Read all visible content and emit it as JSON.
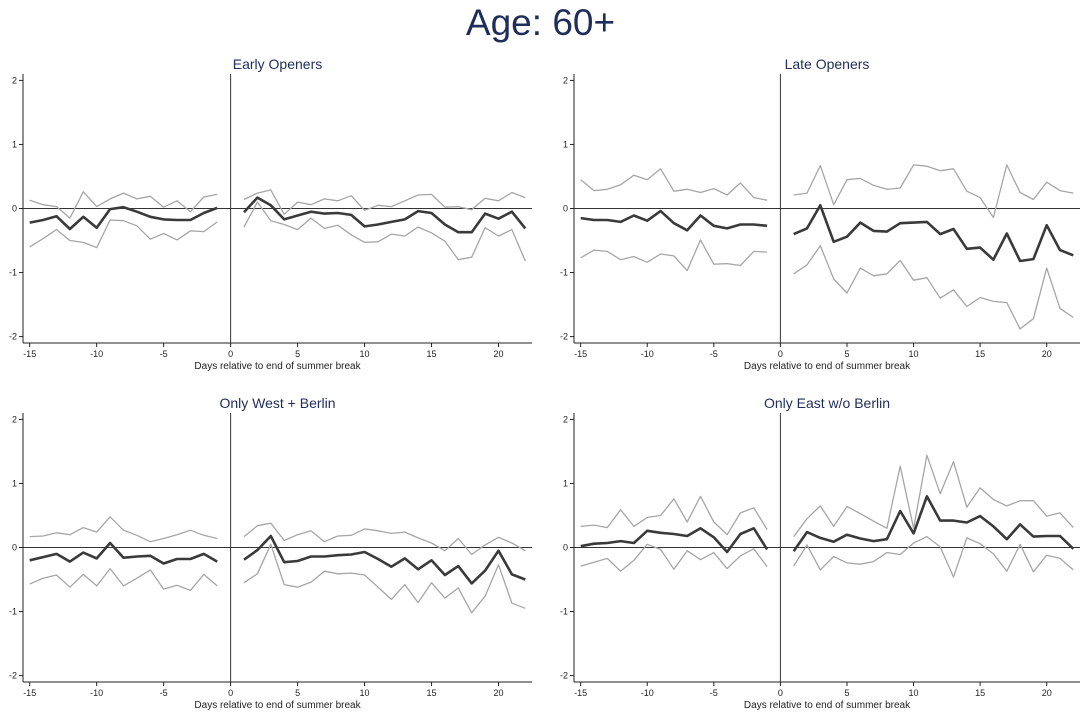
{
  "title": "Age: 60+",
  "chart_data": [
    {
      "type": "line",
      "title": "Early Openers",
      "xlabel": "Days relative to end of summer break",
      "ylabel": "",
      "xlim": [
        -15.5,
        22.5
      ],
      "ylim": [
        -2.1,
        2.1
      ],
      "xticks": [
        -15,
        -10,
        -5,
        0,
        5,
        10,
        15,
        20
      ],
      "yticks": [
        -2,
        -1,
        0,
        1,
        2
      ],
      "series": [
        {
          "role": "estimate",
          "x": [
            -15,
            -14,
            -13,
            -12,
            -11,
            -10,
            -9,
            -8,
            -7,
            -6,
            -5,
            -4,
            -3,
            -2,
            -1,
            1,
            2,
            3,
            4,
            5,
            6,
            7,
            8,
            9,
            10,
            11,
            12,
            13,
            14,
            15,
            16,
            17,
            18,
            19,
            20,
            21,
            22
          ],
          "y": [
            -0.22,
            -0.18,
            -0.12,
            -0.32,
            -0.13,
            -0.3,
            -0.01,
            0.02,
            -0.05,
            -0.13,
            -0.17,
            -0.18,
            -0.18,
            -0.07,
            0.01,
            -0.06,
            0.17,
            0.05,
            -0.17,
            -0.11,
            -0.05,
            -0.08,
            -0.07,
            -0.1,
            -0.28,
            -0.25,
            -0.21,
            -0.17,
            -0.04,
            -0.07,
            -0.25,
            -0.37,
            -0.37,
            -0.08,
            -0.16,
            -0.05,
            -0.31
          ]
        },
        {
          "role": "upper",
          "x": [
            -15,
            -14,
            -13,
            -12,
            -11,
            -10,
            -9,
            -8,
            -7,
            -6,
            -5,
            -4,
            -3,
            -2,
            -1,
            1,
            2,
            3,
            4,
            5,
            6,
            7,
            8,
            9,
            10,
            11,
            12,
            13,
            14,
            15,
            16,
            17,
            18,
            19,
            20,
            21,
            22
          ],
          "y": [
            0.13,
            0.06,
            0.03,
            -0.15,
            0.26,
            0.03,
            0.15,
            0.24,
            0.15,
            0.19,
            0.02,
            0.12,
            -0.05,
            0.18,
            0.22,
            0.14,
            0.24,
            0.29,
            -0.09,
            0.1,
            0.06,
            0.15,
            0.12,
            0.2,
            -0.03,
            0.05,
            0.03,
            0.12,
            0.21,
            0.22,
            0.02,
            0.03,
            -0.02,
            0.16,
            0.12,
            0.25,
            0.17
          ]
        },
        {
          "role": "lower",
          "x": [
            -15,
            -14,
            -13,
            -12,
            -11,
            -10,
            -9,
            -8,
            -7,
            -6,
            -5,
            -4,
            -3,
            -2,
            -1,
            1,
            2,
            3,
            4,
            5,
            6,
            7,
            8,
            9,
            10,
            11,
            12,
            13,
            14,
            15,
            16,
            17,
            18,
            19,
            20,
            21,
            22
          ],
          "y": [
            -0.6,
            -0.47,
            -0.33,
            -0.5,
            -0.53,
            -0.61,
            -0.18,
            -0.19,
            -0.27,
            -0.48,
            -0.39,
            -0.49,
            -0.35,
            -0.36,
            -0.21,
            -0.29,
            0.1,
            -0.19,
            -0.25,
            -0.33,
            -0.15,
            -0.31,
            -0.26,
            -0.41,
            -0.53,
            -0.52,
            -0.4,
            -0.43,
            -0.29,
            -0.38,
            -0.51,
            -0.8,
            -0.76,
            -0.3,
            -0.43,
            -0.33,
            -0.82
          ]
        }
      ]
    },
    {
      "type": "line",
      "title": "Late Openers",
      "xlabel": "Days relative to end of summer break",
      "ylabel": "",
      "xlim": [
        -15.5,
        22.5
      ],
      "ylim": [
        -2.1,
        2.1
      ],
      "xticks": [
        -15,
        -10,
        -5,
        0,
        5,
        10,
        15,
        20
      ],
      "yticks": [
        -2,
        -1,
        0,
        1,
        2
      ],
      "series": [
        {
          "role": "estimate",
          "x": [
            -15,
            -14,
            -13,
            -12,
            -11,
            -10,
            -9,
            -8,
            -7,
            -6,
            -5,
            -4,
            -3,
            -2,
            -1,
            1,
            2,
            3,
            4,
            5,
            6,
            7,
            8,
            9,
            10,
            11,
            12,
            13,
            14,
            15,
            16,
            17,
            18,
            19,
            20,
            21,
            22
          ],
          "y": [
            -0.15,
            -0.18,
            -0.18,
            -0.21,
            -0.11,
            -0.19,
            -0.04,
            -0.23,
            -0.34,
            -0.11,
            -0.27,
            -0.31,
            -0.25,
            -0.25,
            -0.27,
            -0.4,
            -0.31,
            0.05,
            -0.52,
            -0.44,
            -0.22,
            -0.35,
            -0.36,
            -0.23,
            -0.22,
            -0.21,
            -0.4,
            -0.32,
            -0.63,
            -0.61,
            -0.8,
            -0.39,
            -0.82,
            -0.79,
            -0.26,
            -0.65,
            -0.73
          ]
        },
        {
          "role": "upper",
          "x": [
            -15,
            -14,
            -13,
            -12,
            -11,
            -10,
            -9,
            -8,
            -7,
            -6,
            -5,
            -4,
            -3,
            -2,
            -1,
            1,
            2,
            3,
            4,
            5,
            6,
            7,
            8,
            9,
            10,
            11,
            12,
            13,
            14,
            15,
            16,
            17,
            18,
            19,
            20,
            21,
            22
          ],
          "y": [
            0.45,
            0.28,
            0.3,
            0.37,
            0.52,
            0.45,
            0.62,
            0.27,
            0.3,
            0.25,
            0.31,
            0.21,
            0.4,
            0.17,
            0.13,
            0.21,
            0.24,
            0.67,
            0.06,
            0.45,
            0.47,
            0.36,
            0.3,
            0.32,
            0.68,
            0.66,
            0.59,
            0.62,
            0.27,
            0.17,
            -0.14,
            0.68,
            0.25,
            0.14,
            0.41,
            0.28,
            0.24
          ]
        },
        {
          "role": "lower",
          "x": [
            -15,
            -14,
            -13,
            -12,
            -11,
            -10,
            -9,
            -8,
            -7,
            -6,
            -5,
            -4,
            -3,
            -2,
            -1,
            1,
            2,
            3,
            4,
            5,
            6,
            7,
            8,
            9,
            10,
            11,
            12,
            13,
            14,
            15,
            16,
            17,
            18,
            19,
            20,
            21,
            22
          ],
          "y": [
            -0.77,
            -0.65,
            -0.67,
            -0.8,
            -0.75,
            -0.84,
            -0.71,
            -0.74,
            -0.97,
            -0.49,
            -0.87,
            -0.86,
            -0.89,
            -0.67,
            -0.68,
            -1.02,
            -0.88,
            -0.58,
            -1.1,
            -1.32,
            -0.93,
            -1.05,
            -1.02,
            -0.81,
            -1.12,
            -1.08,
            -1.4,
            -1.27,
            -1.53,
            -1.39,
            -1.45,
            -1.47,
            -1.88,
            -1.72,
            -0.93,
            -1.56,
            -1.7
          ]
        }
      ]
    },
    {
      "type": "line",
      "title": "Only West + Berlin",
      "xlabel": "Days relative to end of summer break",
      "ylabel": "",
      "xlim": [
        -15.5,
        22.5
      ],
      "ylim": [
        -2.1,
        2.1
      ],
      "xticks": [
        -15,
        -10,
        -5,
        0,
        5,
        10,
        15,
        20
      ],
      "yticks": [
        -2,
        -1,
        0,
        1,
        2
      ],
      "series": [
        {
          "role": "estimate",
          "x": [
            -15,
            -14,
            -13,
            -12,
            -11,
            -10,
            -9,
            -8,
            -7,
            -6,
            -5,
            -4,
            -3,
            -2,
            -1,
            1,
            2,
            3,
            4,
            5,
            6,
            7,
            8,
            9,
            10,
            11,
            12,
            13,
            14,
            15,
            16,
            17,
            18,
            19,
            20,
            21,
            22
          ],
          "y": [
            -0.2,
            -0.15,
            -0.1,
            -0.22,
            -0.08,
            -0.17,
            0.07,
            -0.16,
            -0.14,
            -0.13,
            -0.25,
            -0.18,
            -0.18,
            -0.1,
            -0.22,
            -0.19,
            -0.04,
            0.18,
            -0.23,
            -0.21,
            -0.14,
            -0.14,
            -0.12,
            -0.11,
            -0.07,
            -0.18,
            -0.3,
            -0.17,
            -0.34,
            -0.2,
            -0.43,
            -0.29,
            -0.56,
            -0.36,
            -0.05,
            -0.42,
            -0.5
          ]
        },
        {
          "role": "upper",
          "x": [
            -15,
            -14,
            -13,
            -12,
            -11,
            -10,
            -9,
            -8,
            -7,
            -6,
            -5,
            -4,
            -3,
            -2,
            -1,
            1,
            2,
            3,
            4,
            5,
            6,
            7,
            8,
            9,
            10,
            11,
            12,
            13,
            14,
            15,
            16,
            17,
            18,
            19,
            20,
            21,
            22
          ],
          "y": [
            0.17,
            0.18,
            0.23,
            0.2,
            0.31,
            0.24,
            0.48,
            0.27,
            0.19,
            0.09,
            0.14,
            0.2,
            0.27,
            0.19,
            0.14,
            0.17,
            0.34,
            0.38,
            0.11,
            0.2,
            0.26,
            0.09,
            0.18,
            0.19,
            0.29,
            0.26,
            0.22,
            0.24,
            0.15,
            0.07,
            -0.05,
            0.14,
            -0.11,
            0.04,
            0.16,
            0.07,
            -0.05
          ]
        },
        {
          "role": "lower",
          "x": [
            -15,
            -14,
            -13,
            -12,
            -11,
            -10,
            -9,
            -8,
            -7,
            -6,
            -5,
            -4,
            -3,
            -2,
            -1,
            1,
            2,
            3,
            4,
            5,
            6,
            7,
            8,
            9,
            10,
            11,
            12,
            13,
            14,
            15,
            16,
            17,
            18,
            19,
            20,
            21,
            22
          ],
          "y": [
            -0.57,
            -0.48,
            -0.43,
            -0.62,
            -0.42,
            -0.6,
            -0.33,
            -0.6,
            -0.48,
            -0.35,
            -0.65,
            -0.59,
            -0.67,
            -0.42,
            -0.6,
            -0.55,
            -0.41,
            0.05,
            -0.58,
            -0.62,
            -0.54,
            -0.37,
            -0.41,
            -0.4,
            -0.43,
            -0.62,
            -0.81,
            -0.58,
            -0.86,
            -0.55,
            -0.79,
            -0.63,
            -1.02,
            -0.76,
            -0.27,
            -0.87,
            -0.95
          ]
        }
      ]
    },
    {
      "type": "line",
      "title": "Only East w/o Berlin",
      "xlabel": "Days relative to end of summer break",
      "ylabel": "",
      "xlim": [
        -15.5,
        22.5
      ],
      "ylim": [
        -2.1,
        2.1
      ],
      "xticks": [
        -15,
        -10,
        -5,
        0,
        5,
        10,
        15,
        20
      ],
      "yticks": [
        -2,
        -1,
        0,
        1,
        2
      ],
      "series": [
        {
          "role": "estimate",
          "x": [
            -15,
            -14,
            -13,
            -12,
            -11,
            -10,
            -9,
            -8,
            -7,
            -6,
            -5,
            -4,
            -3,
            -2,
            -1,
            1,
            2,
            3,
            4,
            5,
            6,
            7,
            8,
            9,
            10,
            11,
            12,
            13,
            14,
            15,
            16,
            17,
            18,
            19,
            20,
            21,
            22
          ],
          "y": [
            0.02,
            0.06,
            0.07,
            0.1,
            0.07,
            0.26,
            0.23,
            0.21,
            0.18,
            0.3,
            0.16,
            -0.07,
            0.21,
            0.3,
            -0.03,
            -0.06,
            0.24,
            0.15,
            0.09,
            0.2,
            0.14,
            0.1,
            0.13,
            0.57,
            0.22,
            0.8,
            0.42,
            0.42,
            0.39,
            0.49,
            0.33,
            0.13,
            0.36,
            0.17,
            0.18,
            0.18,
            -0.02
          ]
        },
        {
          "role": "upper",
          "x": [
            -15,
            -14,
            -13,
            -12,
            -11,
            -10,
            -9,
            -8,
            -7,
            -6,
            -5,
            -4,
            -3,
            -2,
            -1,
            1,
            2,
            3,
            4,
            5,
            6,
            7,
            8,
            9,
            10,
            11,
            12,
            13,
            14,
            15,
            16,
            17,
            18,
            19,
            20,
            21,
            22
          ],
          "y": [
            0.33,
            0.35,
            0.31,
            0.59,
            0.33,
            0.47,
            0.5,
            0.76,
            0.4,
            0.8,
            0.4,
            0.2,
            0.54,
            0.62,
            0.28,
            0.17,
            0.45,
            0.65,
            0.33,
            0.64,
            0.53,
            0.41,
            0.3,
            1.27,
            0.3,
            1.44,
            0.84,
            1.34,
            0.63,
            0.93,
            0.75,
            0.65,
            0.73,
            0.73,
            0.49,
            0.54,
            0.31
          ]
        },
        {
          "role": "lower",
          "x": [
            -15,
            -14,
            -13,
            -12,
            -11,
            -10,
            -9,
            -8,
            -7,
            -6,
            -5,
            -4,
            -3,
            -2,
            -1,
            1,
            2,
            3,
            4,
            5,
            6,
            7,
            8,
            9,
            10,
            11,
            12,
            13,
            14,
            15,
            16,
            17,
            18,
            19,
            20,
            21,
            22
          ],
          "y": [
            -0.29,
            -0.23,
            -0.17,
            -0.37,
            -0.2,
            0.05,
            -0.03,
            -0.34,
            -0.05,
            -0.19,
            -0.08,
            -0.33,
            -0.13,
            -0.02,
            -0.3,
            -0.29,
            0.04,
            -0.35,
            -0.14,
            -0.24,
            -0.26,
            -0.22,
            -0.08,
            -0.11,
            0.07,
            0.17,
            0.01,
            -0.46,
            0.15,
            0.06,
            -0.1,
            -0.37,
            0.05,
            -0.38,
            -0.12,
            -0.17,
            -0.35
          ]
        }
      ]
    }
  ]
}
